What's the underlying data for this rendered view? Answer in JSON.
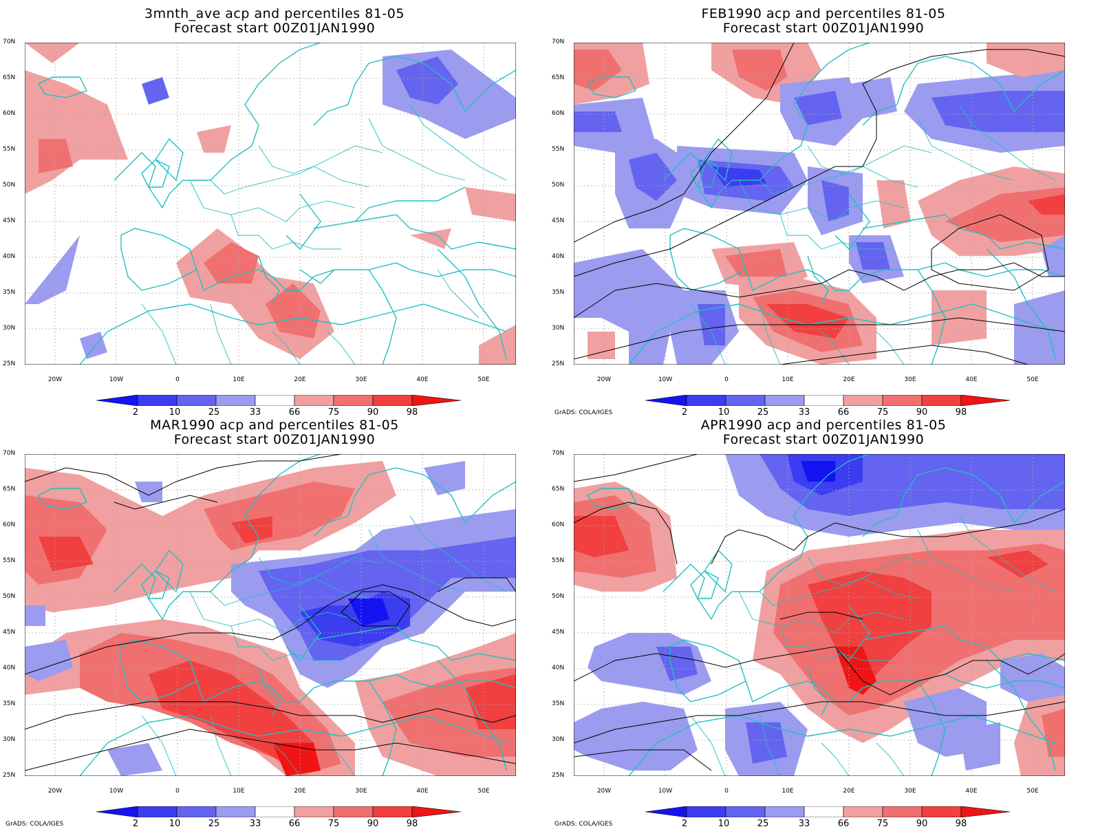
{
  "panels": [
    {
      "title": "3mnth_ave acp and percentiles 81-05",
      "subtitle": "Forecast start 00Z01JAN1990",
      "credit": ""
    },
    {
      "title": "FEB1990 acp and percentiles 81-05",
      "subtitle": "Forecast start 00Z01JAN1990",
      "credit": "GrADS: COLA/IGES"
    },
    {
      "title": "MAR1990 acp and percentiles 81-05",
      "subtitle": "Forecast start 00Z01JAN1990",
      "credit": "GrADS: COLA/IGES"
    },
    {
      "title": "APR1990 acp and percentiles 81-05",
      "subtitle": "Forecast start 00Z01JAN1990",
      "credit": "GrADS: COLA/IGES"
    }
  ],
  "lat_labels": [
    "70N",
    "65N",
    "60N",
    "55N",
    "50N",
    "45N",
    "40N",
    "35N",
    "30N",
    "25N"
  ],
  "lon_labels": [
    "20W",
    "10W",
    "0",
    "10E",
    "20E",
    "30E",
    "40E",
    "50E"
  ],
  "colorbar": {
    "labels": [
      "2",
      "10",
      "25",
      "33",
      "66",
      "75",
      "90",
      "98"
    ],
    "colors": [
      "#1414f0",
      "#3c3cf0",
      "#6464f0",
      "#9b9bf0",
      "#ffffff",
      "#f0a0a0",
      "#f07070",
      "#f04040",
      "#f01414"
    ]
  },
  "colors": {
    "coast": "#20c0c0",
    "contour": "#000000",
    "grid": "#aaaaaa"
  }
}
